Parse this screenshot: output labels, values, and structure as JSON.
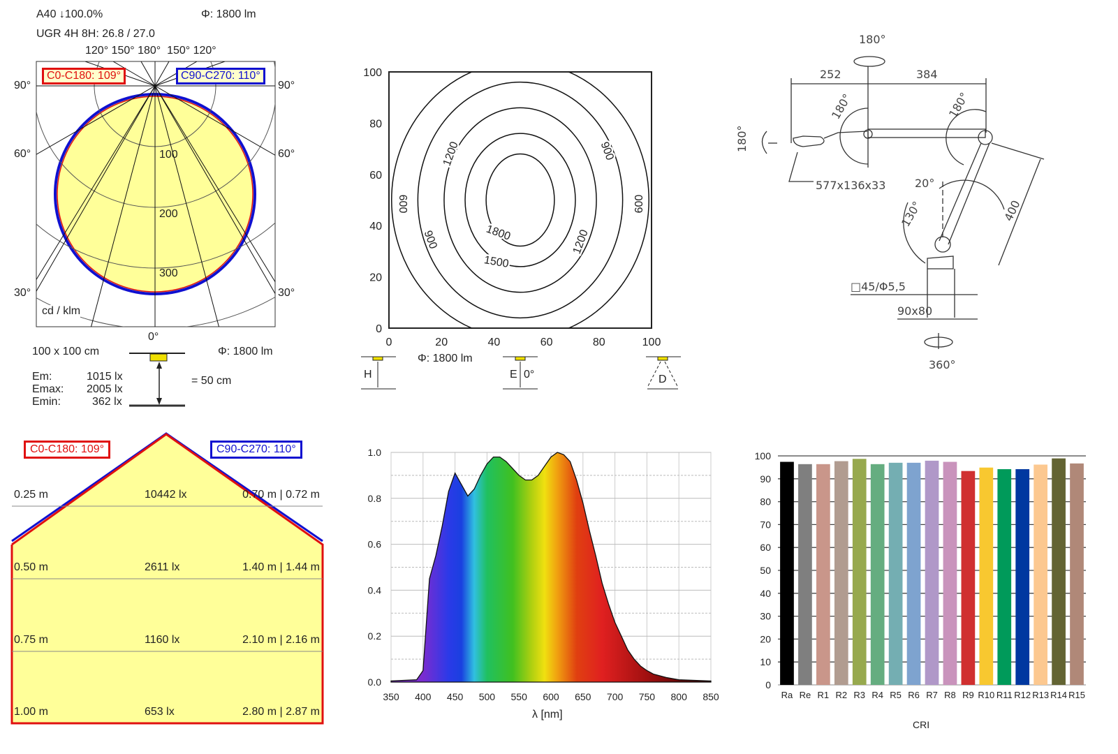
{
  "polar": {
    "header1": "A40 ↓100.0%",
    "header_flux": "Φ: 1800 lm",
    "header2": "UGR 4H 8H: 26.8 / 27.0",
    "top_angles": "120° 150° 180°  150° 120°",
    "angle_90": "90°",
    "angle_60": "60°",
    "angle_30": "30°",
    "angle_0": "0°",
    "legend_c0": "C0-C180: 109°",
    "legend_c90": "C90-C270: 110°",
    "ring_labels": [
      "100",
      "200",
      "300"
    ],
    "unit": "cd / klm",
    "room": "100 x 100 cm",
    "flux": "Φ: 1800 lm",
    "height": "= 50 cm",
    "em_label": "Em:",
    "em": "1015 lx",
    "emax_label": "Emax:",
    "emax": "2005 lx",
    "emin_label": "Emin:",
    "emin": "362 lx",
    "colors": {
      "c0": "#e01010",
      "c90": "#1010d0",
      "fill": "#ffff99"
    }
  },
  "isolux": {
    "ticks": [
      "0",
      "20",
      "40",
      "60",
      "80",
      "100"
    ],
    "contours": [
      {
        "level": "600",
        "rx": 49,
        "ry": 54
      },
      {
        "level": "900",
        "rx": 39,
        "ry": 46
      },
      {
        "level": "1200",
        "rx": 29,
        "ry": 36
      },
      {
        "level": "1500",
        "rx": 21,
        "ry": 26
      },
      {
        "level": "1800",
        "rx": 13,
        "ry": 18
      }
    ],
    "flux": "Φ: 1800 lm",
    "icon_h": "H",
    "icon_e": "E",
    "icon_e_angle": "0°",
    "icon_d": "D"
  },
  "drawing": {
    "rot_top": "180°",
    "dim_left": "252",
    "dim_right": "384",
    "angle_head": "180°",
    "angle_joint1": "180°",
    "angle_joint2": "180°",
    "head_size": "577x136x33",
    "angle_20": "20°",
    "angle_130": "130°",
    "dim_arm": "400",
    "base_hole": "□45/Φ5,5",
    "base_size": "90x80",
    "rot_base": "360°"
  },
  "cone": {
    "legend_c0": "C0-C180: 109°",
    "legend_c90": "C90-C270: 110°",
    "rows": [
      {
        "height": "0.25 m",
        "lux": "10442 lx",
        "diam": "0.70 m | 0.72 m"
      },
      {
        "height": "0.50 m",
        "lux": "2611 lx",
        "diam": "1.40 m | 1.44 m"
      },
      {
        "height": "0.75 m",
        "lux": "1160 lx",
        "diam": "2.10 m | 2.16 m"
      },
      {
        "height": "1.00 m",
        "lux": "653 lx",
        "diam": "2.80 m | 2.87 m"
      }
    ]
  },
  "chart_data": [
    {
      "type": "area",
      "title": "",
      "xlabel": "λ [nm]",
      "ylabel": "",
      "xlim": [
        350,
        850
      ],
      "ylim": [
        0,
        1.0
      ],
      "xticks": [
        "350",
        "400",
        "450",
        "500",
        "550",
        "600",
        "650",
        "700",
        "750",
        "800",
        "850"
      ],
      "yticks": [
        "0.0",
        "0.2",
        "0.4",
        "0.6",
        "0.8",
        "1.0"
      ],
      "x": [
        350,
        390,
        400,
        405,
        410,
        420,
        430,
        440,
        450,
        460,
        470,
        480,
        490,
        500,
        510,
        520,
        530,
        540,
        550,
        560,
        570,
        580,
        590,
        600,
        610,
        620,
        630,
        640,
        650,
        660,
        670,
        680,
        690,
        700,
        710,
        720,
        730,
        740,
        750,
        760,
        780,
        800,
        850
      ],
      "y": [
        0.005,
        0.01,
        0.05,
        0.25,
        0.45,
        0.55,
        0.68,
        0.83,
        0.91,
        0.86,
        0.81,
        0.84,
        0.9,
        0.95,
        0.98,
        0.98,
        0.96,
        0.93,
        0.9,
        0.88,
        0.88,
        0.9,
        0.94,
        0.98,
        1.0,
        0.99,
        0.96,
        0.88,
        0.78,
        0.66,
        0.55,
        0.43,
        0.34,
        0.26,
        0.2,
        0.14,
        0.1,
        0.07,
        0.05,
        0.035,
        0.02,
        0.01,
        0.005
      ]
    },
    {
      "type": "bar",
      "title": "",
      "xlabel": "CRI",
      "ylabel": "",
      "ylim": [
        0,
        100
      ],
      "yticks": [
        "0",
        "10",
        "20",
        "30",
        "40",
        "50",
        "60",
        "70",
        "80",
        "90",
        "100"
      ],
      "categories": [
        "Ra",
        "Re",
        "R1",
        "R2",
        "R3",
        "R4",
        "R5",
        "R6",
        "R7",
        "R8",
        "R9",
        "R10",
        "R11",
        "R12",
        "R13",
        "R14",
        "R15"
      ],
      "values": [
        97.4,
        96.4,
        96.4,
        97.7,
        98.7,
        96.4,
        97.0,
        97.0,
        97.9,
        97.4,
        93.4,
        94.9,
        94.2,
        94.2,
        96.2,
        98.9,
        96.7
      ],
      "colors": [
        "#000000",
        "#7f7f7f",
        "#c9968a",
        "#b19c90",
        "#97a94e",
        "#65ad80",
        "#74aeb2",
        "#7ea3cf",
        "#b098c8",
        "#c993bc",
        "#d03030",
        "#f8c830",
        "#009a5a",
        "#0038a0",
        "#fcc890",
        "#636433",
        "#b08878"
      ]
    }
  ]
}
